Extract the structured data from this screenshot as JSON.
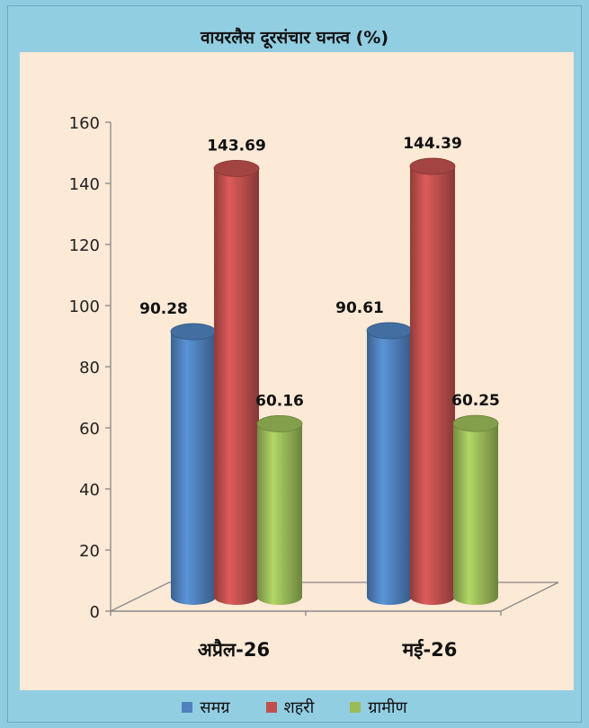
{
  "chart_data": {
    "type": "bar",
    "title": "वायरलैस दूरसंचार घनत्व (%)",
    "categories": [
      "अप्रैल-26",
      "मई-26"
    ],
    "ylim": [
      0,
      160
    ],
    "yticks": [
      0,
      20,
      40,
      60,
      80,
      100,
      120,
      140,
      160
    ],
    "series": [
      {
        "name": "समग्र",
        "values": [
          90.28,
          90.61
        ],
        "color": "#4f81bd"
      },
      {
        "name": "शहरी",
        "values": [
          143.69,
          144.39
        ],
        "color": "#c0504d"
      },
      {
        "name": "ग्रामीण",
        "values": [
          60.16,
          60.25
        ],
        "color": "#9bbb59"
      }
    ],
    "legend_position": "bottom"
  }
}
